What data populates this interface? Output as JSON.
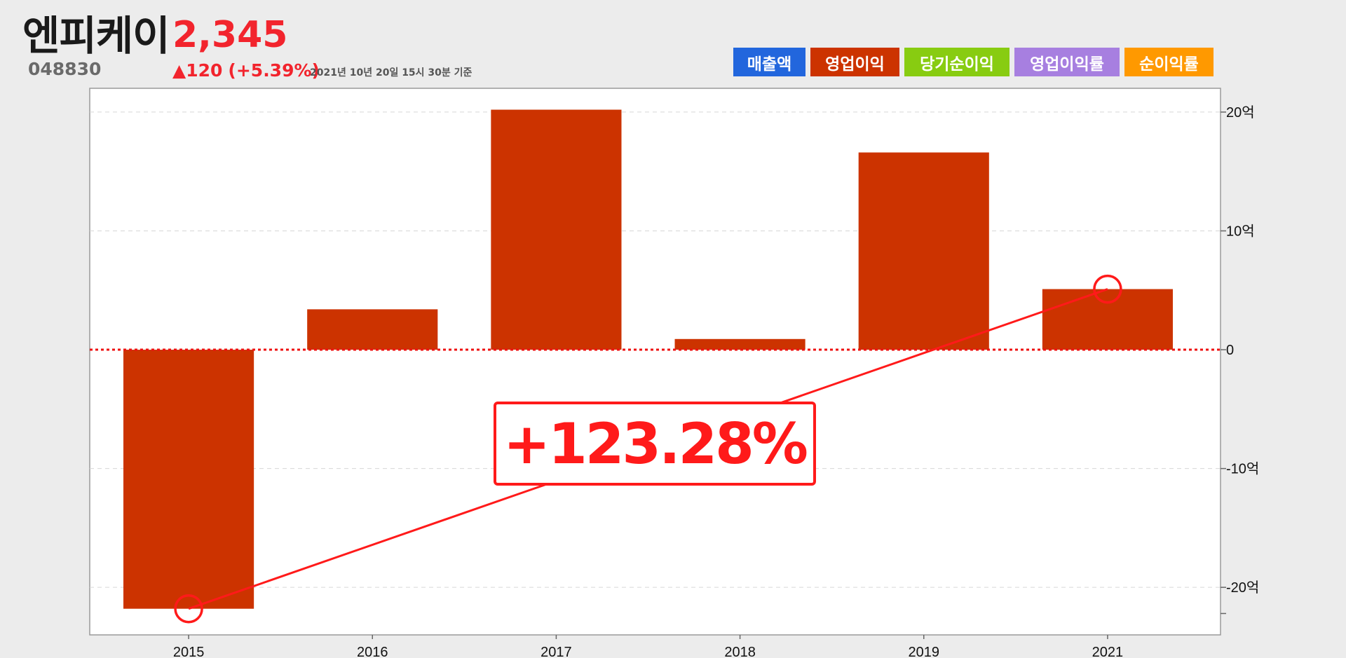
{
  "stock": {
    "name": "엔피케이",
    "code": "048830",
    "price": "2,345",
    "change": "▲120",
    "change_pct": "(+5.39%)",
    "as_of": "2021년 10년 20일 15시 30분 기준"
  },
  "legend": [
    {
      "label": "매출액",
      "color": "#2266dd"
    },
    {
      "label": "영업이익",
      "color": "#cc3300"
    },
    {
      "label": "당기순이익",
      "color": "#88cc11"
    },
    {
      "label": "영업이익률",
      "color": "#a77fe0"
    },
    {
      "label": "순이익률",
      "color": "#ff9900"
    }
  ],
  "colors": {
    "bar": "#cc3300",
    "accent": "#ff1a1a",
    "price": "#f2242d"
  },
  "callout": {
    "text": "+123.28%"
  },
  "chart_data": {
    "type": "bar",
    "series": [
      {
        "name": "영업이익",
        "values": [
          -21.8,
          3.4,
          20.2,
          0.9,
          16.6,
          5.1
        ]
      }
    ],
    "categories": [
      "2015",
      "2016",
      "2017",
      "2018",
      "2019",
      "2021"
    ],
    "ylim": [
      -24,
      22
    ],
    "y_ticks": [
      {
        "value": 20,
        "label": "20억"
      },
      {
        "value": 10,
        "label": "10억"
      },
      {
        "value": 0,
        "label": "0"
      },
      {
        "value": -10,
        "label": "-10억"
      },
      {
        "value": -20,
        "label": "-20억"
      }
    ],
    "y_axis_side": "right",
    "grid": true,
    "zero_line": "dotted red",
    "trend_line": {
      "from": {
        "category": "2015",
        "value": -21.8
      },
      "to": {
        "category": "2021",
        "value": 5.1
      }
    }
  }
}
